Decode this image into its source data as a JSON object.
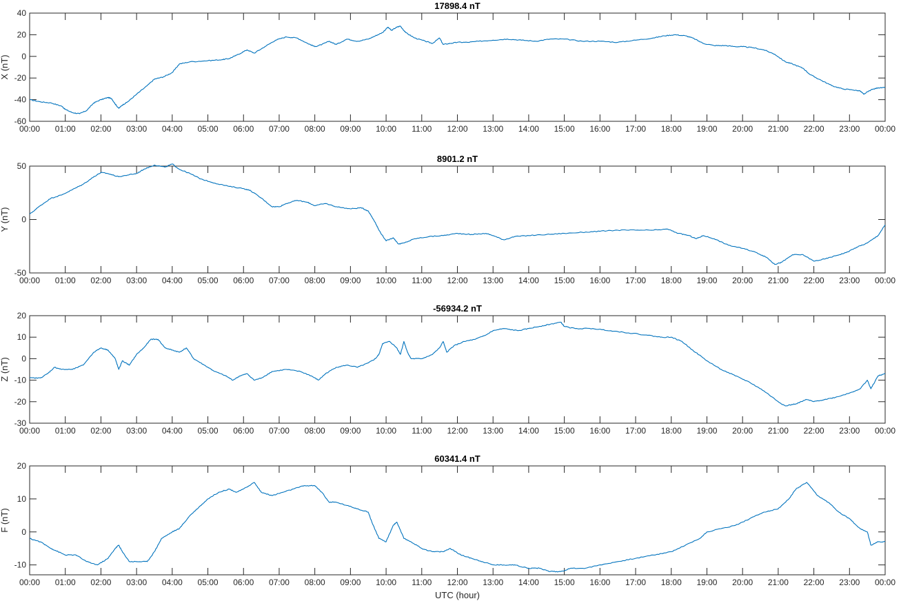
{
  "chart_data": [
    {
      "type": "line",
      "title": "17898.4 nT",
      "ylabel": "X (nT)",
      "xlabel": "",
      "xlim": [
        0,
        24
      ],
      "ylim": [
        -60,
        40
      ],
      "yticks": [
        -60,
        -40,
        -20,
        0,
        20,
        40
      ],
      "xticklabels": [
        "00:00",
        "01:00",
        "02:00",
        "03:00",
        "04:00",
        "05:00",
        "06:00",
        "07:00",
        "08:00",
        "09:00",
        "10:00",
        "11:00",
        "12:00",
        "13:00",
        "14:00",
        "15:00",
        "16:00",
        "17:00",
        "18:00",
        "19:00",
        "20:00",
        "21:00",
        "22:00",
        "23:00",
        "00:00"
      ],
      "series": [
        {
          "color": "#0072BD",
          "x": [
            0,
            0.3,
            0.6,
            0.9,
            1.0,
            1.2,
            1.4,
            1.6,
            1.8,
            2.0,
            2.2,
            2.3,
            2.4,
            2.5,
            2.6,
            2.75,
            3.0,
            3.3,
            3.5,
            3.75,
            4.0,
            4.2,
            4.5,
            5.0,
            5.4,
            5.6,
            5.8,
            6.1,
            6.3,
            6.6,
            6.9,
            7.2,
            7.5,
            7.8,
            8.0,
            8.2,
            8.4,
            8.6,
            8.9,
            9.2,
            9.5,
            9.7,
            9.9,
            10.05,
            10.15,
            10.3,
            10.4,
            10.55,
            10.8,
            11.1,
            11.3,
            11.5,
            11.6,
            11.8,
            12.0,
            12.3,
            12.6,
            13.0,
            13.4,
            13.8,
            14.2,
            14.6,
            15.0,
            15.5,
            16.0,
            16.5,
            17.0,
            17.5,
            17.8,
            18.1,
            18.4,
            18.6,
            18.9,
            19.2,
            19.5,
            19.8,
            20.0,
            20.3,
            20.6,
            20.9,
            21.2,
            21.4,
            21.7,
            21.9,
            22.2,
            22.5,
            22.8,
            23.1,
            23.3,
            23.4,
            23.6,
            23.8,
            24.0
          ],
          "y": [
            -40,
            -42,
            -43,
            -46,
            -49,
            -52,
            -53,
            -50,
            -43,
            -40,
            -38,
            -39,
            -44,
            -48,
            -45,
            -42,
            -35,
            -27,
            -21,
            -19,
            -15,
            -7,
            -5,
            -4,
            -3,
            -2,
            1,
            6,
            3,
            9,
            15,
            18,
            17,
            12,
            9,
            11,
            14,
            11,
            16,
            14,
            16,
            19,
            22,
            27,
            24,
            27,
            28,
            22,
            17,
            14,
            12,
            17,
            11,
            12,
            13,
            13,
            14,
            15,
            16,
            15,
            14,
            16,
            16,
            14,
            14,
            13,
            15,
            17,
            19,
            20,
            19,
            17,
            12,
            10,
            10,
            9,
            9,
            8,
            6,
            2,
            -5,
            -7,
            -11,
            -17,
            -22,
            -27,
            -30,
            -31,
            -32,
            -35,
            -31,
            -29,
            -29
          ]
        }
      ]
    },
    {
      "type": "line",
      "title": "8901.2 nT",
      "ylabel": "Y (nT)",
      "xlabel": "",
      "xlim": [
        0,
        24
      ],
      "ylim": [
        -50,
        50
      ],
      "yticks": [
        -50,
        0,
        50
      ],
      "xticklabels": [
        "00:00",
        "01:00",
        "02:00",
        "03:00",
        "04:00",
        "05:00",
        "06:00",
        "07:00",
        "08:00",
        "09:00",
        "10:00",
        "11:00",
        "12:00",
        "13:00",
        "14:00",
        "15:00",
        "16:00",
        "17:00",
        "18:00",
        "19:00",
        "20:00",
        "21:00",
        "22:00",
        "23:00",
        "00:00"
      ],
      "series": [
        {
          "color": "#0072BD",
          "x": [
            0,
            0.3,
            0.6,
            0.9,
            1.2,
            1.5,
            1.8,
            2.0,
            2.2,
            2.5,
            2.8,
            3.0,
            3.2,
            3.5,
            3.8,
            4.0,
            4.2,
            4.5,
            4.8,
            5.2,
            5.6,
            6.0,
            6.2,
            6.5,
            6.8,
            7.0,
            7.2,
            7.5,
            7.8,
            8.0,
            8.3,
            8.6,
            9.0,
            9.3,
            9.5,
            9.7,
            9.8,
            10.0,
            10.2,
            10.35,
            10.5,
            10.8,
            11.2,
            11.6,
            12.0,
            12.4,
            12.8,
            13.0,
            13.3,
            13.6,
            14.0,
            14.5,
            15.0,
            15.5,
            16.0,
            16.5,
            17.0,
            17.5,
            17.9,
            18.2,
            18.5,
            18.7,
            18.9,
            19.2,
            19.6,
            20.0,
            20.4,
            20.7,
            20.9,
            21.1,
            21.4,
            21.7,
            22.0,
            22.3,
            22.6,
            22.9,
            23.2,
            23.5,
            23.8,
            24.0
          ],
          "y": [
            5,
            13,
            20,
            23,
            28,
            33,
            40,
            44,
            43,
            40,
            42,
            43,
            47,
            51,
            49,
            52,
            47,
            43,
            38,
            34,
            31,
            29,
            27,
            20,
            12,
            12,
            15,
            18,
            16,
            13,
            15,
            12,
            10,
            11,
            8,
            -3,
            -10,
            -20,
            -17,
            -23,
            -22,
            -18,
            -16,
            -15,
            -13,
            -14,
            -13,
            -15,
            -19,
            -16,
            -15,
            -14,
            -13,
            -12,
            -11,
            -10,
            -10,
            -10,
            -9,
            -13,
            -15,
            -18,
            -15,
            -18,
            -24,
            -27,
            -31,
            -36,
            -42,
            -40,
            -33,
            -33,
            -39,
            -37,
            -34,
            -31,
            -26,
            -22,
            -15,
            -5
          ]
        }
      ]
    },
    {
      "type": "line",
      "title": "-56934.2 nT",
      "ylabel": "Z (nT)",
      "xlabel": "",
      "xlim": [
        0,
        24
      ],
      "ylim": [
        -30,
        20
      ],
      "yticks": [
        -30,
        -20,
        -10,
        0,
        10,
        20
      ],
      "xticklabels": [
        "00:00",
        "01:00",
        "02:00",
        "03:00",
        "04:00",
        "05:00",
        "06:00",
        "07:00",
        "08:00",
        "09:00",
        "10:00",
        "11:00",
        "12:00",
        "13:00",
        "14:00",
        "15:00",
        "16:00",
        "17:00",
        "18:00",
        "19:00",
        "20:00",
        "21:00",
        "22:00",
        "23:00",
        "00:00"
      ],
      "series": [
        {
          "color": "#0072BD",
          "x": [
            0,
            0.3,
            0.5,
            0.7,
            0.9,
            1.2,
            1.5,
            1.8,
            2.0,
            2.2,
            2.4,
            2.5,
            2.6,
            2.8,
            3.0,
            3.2,
            3.4,
            3.6,
            3.8,
            4.0,
            4.2,
            4.4,
            4.6,
            4.9,
            5.2,
            5.5,
            5.7,
            5.9,
            6.1,
            6.3,
            6.5,
            6.8,
            7.2,
            7.6,
            7.9,
            8.1,
            8.3,
            8.6,
            8.9,
            9.2,
            9.5,
            9.7,
            9.8,
            9.9,
            10.1,
            10.3,
            10.4,
            10.5,
            10.6,
            10.7,
            11.0,
            11.3,
            11.5,
            11.6,
            11.7,
            11.9,
            12.2,
            12.5,
            12.8,
            13.0,
            13.3,
            13.7,
            14.0,
            14.3,
            14.6,
            14.9,
            15.0,
            15.3,
            15.8,
            16.3,
            16.8,
            17.3,
            17.7,
            18.0,
            18.3,
            18.6,
            19.0,
            19.4,
            19.8,
            20.2,
            20.6,
            21.0,
            21.2,
            21.5,
            21.8,
            22.0,
            22.3,
            22.6,
            23.0,
            23.3,
            23.5,
            23.6,
            23.8,
            24.0
          ],
          "y": [
            -9,
            -9,
            -7,
            -4,
            -5,
            -5,
            -3,
            3,
            5,
            4,
            0,
            -5,
            -1,
            -3,
            2,
            5,
            9,
            9,
            5,
            4,
            3,
            5,
            0,
            -3,
            -6,
            -8,
            -10,
            -8,
            -7,
            -10,
            -9,
            -6,
            -5,
            -6,
            -8,
            -10,
            -7,
            -4,
            -3,
            -4,
            -2,
            0,
            2,
            7,
            8,
            5,
            2,
            8,
            3,
            0,
            0,
            2,
            5,
            8,
            3,
            6,
            8,
            9,
            11,
            13,
            14,
            13,
            14,
            15,
            16,
            17,
            15,
            14,
            14,
            13,
            12,
            11,
            10,
            10,
            8,
            4,
            -1,
            -5,
            -8,
            -11,
            -15,
            -20,
            -22,
            -21,
            -19,
            -20,
            -19,
            -18,
            -16,
            -14,
            -10,
            -14,
            -8,
            -7
          ]
        }
      ]
    },
    {
      "type": "line",
      "title": "60341.4 nT",
      "ylabel": "F (nT)",
      "xlabel": "UTC (hour)",
      "xlim": [
        0,
        24
      ],
      "ylim": [
        -13,
        20
      ],
      "yticks": [
        -10,
        0,
        10,
        20
      ],
      "xticklabels": [
        "00:00",
        "01:00",
        "02:00",
        "03:00",
        "04:00",
        "05:00",
        "06:00",
        "07:00",
        "08:00",
        "09:00",
        "10:00",
        "11:00",
        "12:00",
        "13:00",
        "14:00",
        "15:00",
        "16:00",
        "17:00",
        "18:00",
        "19:00",
        "20:00",
        "21:00",
        "22:00",
        "23:00",
        "00:00"
      ],
      "series": [
        {
          "color": "#0072BD",
          "x": [
            0,
            0.3,
            0.6,
            0.8,
            1.0,
            1.3,
            1.6,
            1.9,
            2.2,
            2.4,
            2.5,
            2.6,
            2.8,
            3.0,
            3.3,
            3.5,
            3.7,
            4.0,
            4.2,
            4.5,
            4.8,
            5.0,
            5.3,
            5.6,
            5.8,
            6.0,
            6.3,
            6.5,
            6.8,
            7.1,
            7.4,
            7.7,
            8.0,
            8.2,
            8.4,
            8.6,
            8.9,
            9.2,
            9.5,
            9.6,
            9.8,
            10.0,
            10.2,
            10.3,
            10.5,
            10.7,
            11.0,
            11.3,
            11.6,
            11.8,
            12.1,
            12.4,
            12.7,
            13.0,
            13.3,
            13.6,
            14.0,
            14.3,
            14.6,
            14.9,
            15.2,
            15.6,
            16.0,
            16.5,
            17.0,
            17.5,
            18.0,
            18.4,
            18.8,
            19.0,
            19.4,
            19.8,
            20.2,
            20.6,
            21.0,
            21.3,
            21.5,
            21.8,
            22.1,
            22.4,
            22.7,
            23.0,
            23.3,
            23.5,
            23.6,
            23.8,
            24.0
          ],
          "y": [
            -2,
            -3,
            -5,
            -6,
            -7,
            -7,
            -9,
            -10,
            -8,
            -5,
            -4,
            -6,
            -9,
            -9,
            -9,
            -6,
            -2,
            0,
            1,
            5,
            8,
            10,
            12,
            13,
            12,
            13,
            15,
            12,
            11,
            12,
            13,
            14,
            14,
            12,
            9,
            9,
            8,
            7,
            6,
            3,
            -2,
            -3,
            2,
            3,
            -2,
            -3,
            -5,
            -6,
            -6,
            -5,
            -7,
            -8,
            -9,
            -10,
            -10,
            -10,
            -11,
            -11,
            -12,
            -12,
            -11,
            -11,
            -10,
            -9,
            -8,
            -7,
            -6,
            -4,
            -2,
            0,
            1,
            2,
            4,
            6,
            7,
            10,
            13,
            15,
            11,
            9,
            6,
            4,
            1,
            0,
            -4,
            -3,
            -3
          ]
        }
      ]
    }
  ]
}
